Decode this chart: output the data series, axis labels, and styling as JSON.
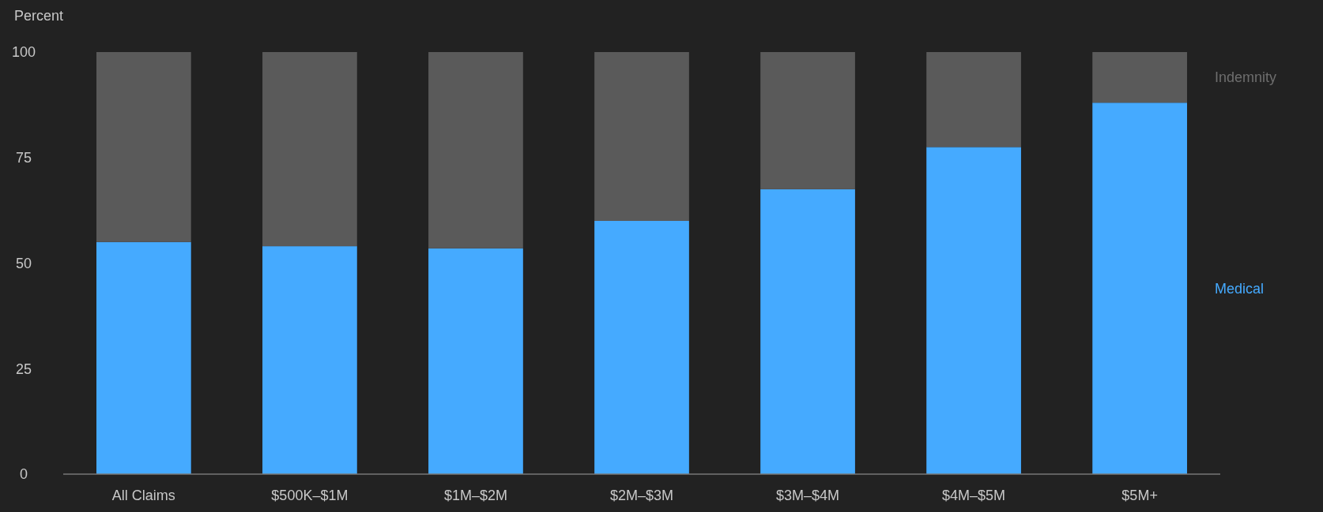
{
  "chart_data": {
    "type": "bar",
    "ylabel": "Percent",
    "categories": [
      "All Claims",
      "$500K–$1M",
      "$1M–$2M",
      "$2M–$3M",
      "$3M–$4M",
      "$4M–$5M",
      "$5M+"
    ],
    "series": [
      {
        "name": "Medical",
        "color": "#45aaff",
        "values": [
          55,
          54,
          53.5,
          60,
          67.5,
          77.5,
          88
        ]
      },
      {
        "name": "Indemnity",
        "color": "#5a5a5a",
        "values": [
          45,
          46,
          46.5,
          40,
          32.5,
          22.5,
          12
        ]
      }
    ],
    "stacked": true,
    "ylim": [
      0,
      100
    ],
    "yticks": [
      0,
      25,
      50,
      75,
      100
    ],
    "grid": false,
    "legend": "right"
  }
}
